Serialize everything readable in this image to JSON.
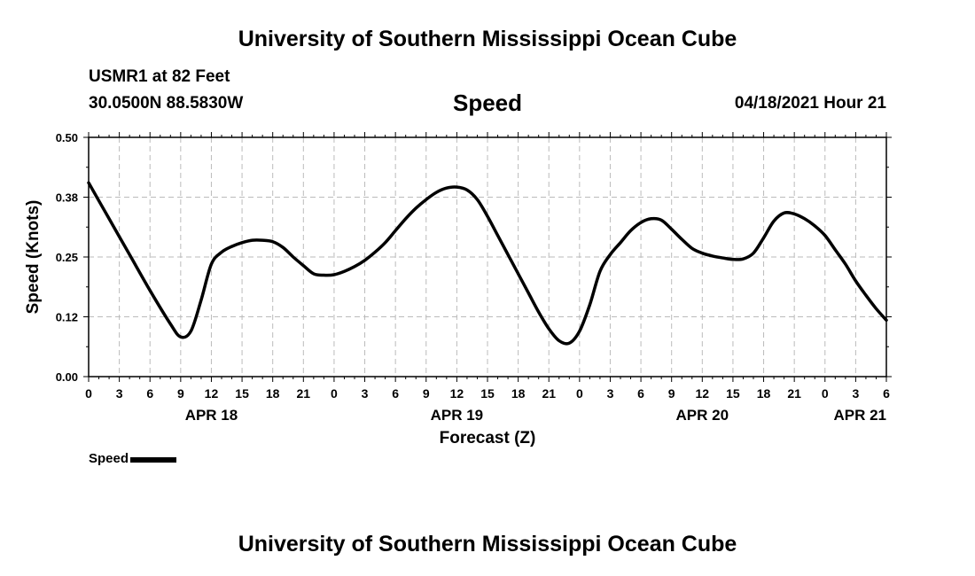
{
  "header": {
    "title": "University of Southern Mississippi Ocean Cube",
    "station": "USMR1 at 82 Feet",
    "coords": "30.0500N  88.5830W",
    "subtitle": "Speed",
    "datetime": "04/18/2021 Hour 21"
  },
  "footer": {
    "title": "University of Southern Mississippi Ocean Cube"
  },
  "legend": {
    "label": "Speed"
  },
  "colors": {
    "line": "#000000",
    "grid": "#bbbbbb",
    "axis": "#000000"
  },
  "chart_data": {
    "type": "line",
    "title": "Speed",
    "xlabel": "Forecast (Z)",
    "ylabel": "Speed (Knots)",
    "xlim": [
      0,
      78
    ],
    "ylim": [
      0,
      0.5
    ],
    "grid": true,
    "y_ticks": [
      0.0,
      0.125,
      0.25,
      0.375,
      0.5
    ],
    "y_tick_labels": [
      "0.00",
      "0.12",
      "0.25",
      "0.38",
      "0.50"
    ],
    "x_ticks": [
      0,
      3,
      6,
      9,
      12,
      15,
      18,
      21,
      24,
      27,
      30,
      33,
      36,
      39,
      42,
      45,
      48,
      51,
      54,
      57,
      60,
      63,
      66,
      69,
      72,
      75,
      78
    ],
    "x_tick_labels": [
      "0",
      "3",
      "6",
      "9",
      "12",
      "15",
      "18",
      "21",
      "0",
      "3",
      "6",
      "9",
      "12",
      "15",
      "18",
      "21",
      "0",
      "3",
      "6",
      "9",
      "12",
      "15",
      "18",
      "21",
      "0",
      "3",
      "6"
    ],
    "day_labels": [
      {
        "x": 12,
        "label": "APR 18"
      },
      {
        "x": 36,
        "label": "APR 19"
      },
      {
        "x": 60,
        "label": "APR 20"
      },
      {
        "x": 78,
        "label": "APR 21"
      }
    ],
    "series": [
      {
        "name": "Speed",
        "x": [
          0,
          2,
          4,
          6,
          8,
          9,
          10,
          11,
          12,
          13,
          14,
          15,
          16,
          17,
          18,
          19,
          20,
          21,
          22,
          23,
          24,
          25,
          26,
          27,
          28,
          29,
          30,
          31,
          32,
          33,
          34,
          35,
          36,
          37,
          38,
          39,
          40,
          41,
          42,
          43,
          44,
          45,
          46,
          47,
          48,
          49,
          50,
          51,
          52,
          53,
          54,
          55,
          56,
          57,
          58,
          59,
          60,
          61,
          62,
          63,
          64,
          65,
          66,
          67,
          68,
          69,
          70,
          71,
          72,
          73,
          74,
          75,
          76,
          77,
          78
        ],
        "values": [
          0.405,
          0.33,
          0.255,
          0.18,
          0.11,
          0.083,
          0.095,
          0.16,
          0.235,
          0.26,
          0.272,
          0.28,
          0.285,
          0.285,
          0.282,
          0.27,
          0.25,
          0.232,
          0.215,
          0.212,
          0.213,
          0.22,
          0.23,
          0.243,
          0.26,
          0.28,
          0.305,
          0.33,
          0.352,
          0.37,
          0.385,
          0.394,
          0.396,
          0.39,
          0.37,
          0.335,
          0.295,
          0.255,
          0.215,
          0.175,
          0.135,
          0.1,
          0.075,
          0.07,
          0.095,
          0.15,
          0.22,
          0.255,
          0.28,
          0.305,
          0.322,
          0.33,
          0.327,
          0.308,
          0.287,
          0.268,
          0.258,
          0.252,
          0.248,
          0.245,
          0.246,
          0.258,
          0.29,
          0.325,
          0.342,
          0.34,
          0.33,
          0.315,
          0.295,
          0.265,
          0.235,
          0.2,
          0.17,
          0.142,
          0.118
        ]
      }
    ]
  }
}
